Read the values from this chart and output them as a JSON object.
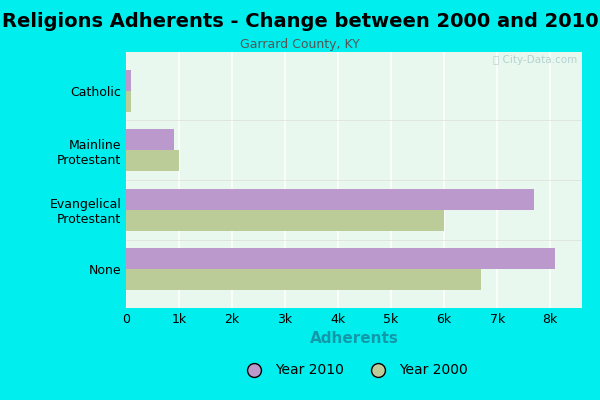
{
  "title": "Religions Adherents - Change between 2000 and 2010",
  "subtitle": "Garrard County, KY",
  "xlabel": "Adherents",
  "categories": [
    "Catholic",
    "Mainline\nProtestant",
    "Evangelical\nProtestant",
    "None"
  ],
  "year2010_values": [
    100,
    900,
    7700,
    8100
  ],
  "year2000_values": [
    100,
    1000,
    6000,
    6700
  ],
  "color_2010": "#bb99cc",
  "color_2000": "#bbcc99",
  "background_outer": "#00eeee",
  "background_plot": "#e8f8ee",
  "grid_color": "#ffffff",
  "xtick_labels": [
    "0",
    "1k",
    "2k",
    "3k",
    "4k",
    "5k",
    "6k",
    "7k",
    "8k"
  ],
  "xtick_values": [
    0,
    1000,
    2000,
    3000,
    4000,
    5000,
    6000,
    7000,
    8000
  ],
  "xlim": [
    0,
    8600
  ],
  "title_fontsize": 14,
  "subtitle_fontsize": 9,
  "xlabel_fontsize": 11,
  "bar_height": 0.35,
  "watermark": "ⓘ City-Data.com"
}
